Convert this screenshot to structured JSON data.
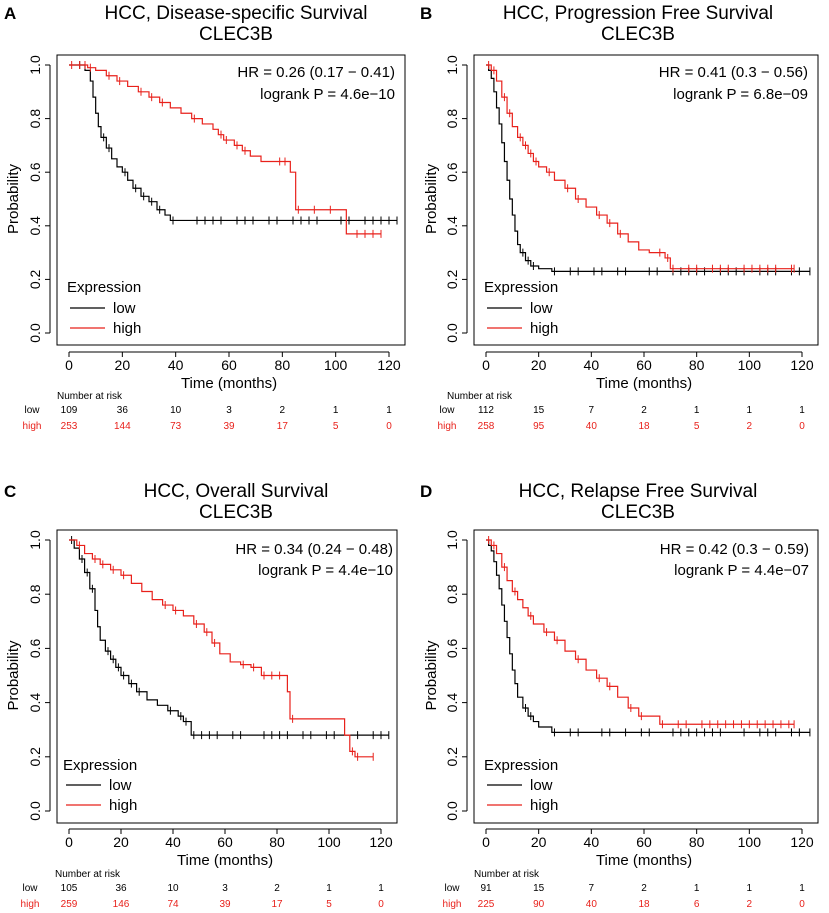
{
  "chart_data": [
    {
      "panel": "A",
      "type": "line",
      "title": "HCC, Disease-specific Survival",
      "subtitle": "CLEC3B",
      "xlabel": "Time (months)",
      "ylabel": "Probability",
      "xlim": [
        0,
        120
      ],
      "ylim": [
        0,
        1
      ],
      "xticks": [
        0,
        20,
        40,
        60,
        80,
        100,
        120
      ],
      "yticks": [
        "0.0",
        "0.2",
        "0.4",
        "0.6",
        "0.8",
        "1.0"
      ],
      "hr_text": "HR = 0.26 (0.17 − 0.41)",
      "logrank_text": "logrank P = 4.6e−10",
      "legend_title": "Expression",
      "series": [
        {
          "name": "low",
          "color": "#000000",
          "points": [
            [
              0,
              1.0
            ],
            [
              3,
              1.0
            ],
            [
              6,
              0.98
            ],
            [
              8,
              0.94
            ],
            [
              9,
              0.88
            ],
            [
              10,
              0.82
            ],
            [
              11,
              0.77
            ],
            [
              12,
              0.73
            ],
            [
              14,
              0.69
            ],
            [
              16,
              0.65
            ],
            [
              18,
              0.62
            ],
            [
              20,
              0.6
            ],
            [
              22,
              0.57
            ],
            [
              24,
              0.54
            ],
            [
              27,
              0.51
            ],
            [
              30,
              0.49
            ],
            [
              33,
              0.46
            ],
            [
              36,
              0.44
            ],
            [
              38,
              0.42
            ],
            [
              123,
              0.42
            ]
          ]
        },
        {
          "name": "high",
          "color": "#e8211b",
          "points": [
            [
              0,
              1.0
            ],
            [
              5,
              1.0
            ],
            [
              7,
              0.99
            ],
            [
              10,
              0.98
            ],
            [
              14,
              0.96
            ],
            [
              18,
              0.94
            ],
            [
              22,
              0.92
            ],
            [
              26,
              0.9
            ],
            [
              30,
              0.88
            ],
            [
              34,
              0.86
            ],
            [
              38,
              0.84
            ],
            [
              42,
              0.82
            ],
            [
              46,
              0.8
            ],
            [
              50,
              0.78
            ],
            [
              54,
              0.76
            ],
            [
              56,
              0.74
            ],
            [
              58,
              0.72
            ],
            [
              62,
              0.7
            ],
            [
              65,
              0.68
            ],
            [
              68,
              0.66
            ],
            [
              72,
              0.64
            ],
            [
              80,
              0.64
            ],
            [
              83,
              0.6
            ],
            [
              85,
              0.46
            ],
            [
              104,
              0.46
            ],
            [
              104,
              0.37
            ],
            [
              117,
              0.37
            ]
          ]
        }
      ],
      "risk_header": "Number at risk",
      "risk_times": [
        0,
        20,
        40,
        60,
        80,
        100,
        120
      ],
      "risk_rows": [
        {
          "name": "low",
          "color": "#000000",
          "values": [
            "109",
            "36",
            "10",
            "3",
            "2",
            "1",
            "1"
          ]
        },
        {
          "name": "high",
          "color": "#e8211b",
          "values": [
            "253",
            "144",
            "73",
            "39",
            "17",
            "5",
            "0"
          ]
        }
      ]
    },
    {
      "panel": "B",
      "type": "line",
      "title": "HCC, Progression Free Survival",
      "subtitle": "CLEC3B",
      "xlabel": "Time (months)",
      "ylabel": "Probability",
      "xlim": [
        0,
        120
      ],
      "ylim": [
        0,
        1
      ],
      "xticks": [
        0,
        20,
        40,
        60,
        80,
        100,
        120
      ],
      "yticks": [
        "0.0",
        "0.2",
        "0.4",
        "0.6",
        "0.8",
        "1.0"
      ],
      "hr_text": "HR = 0.41 (0.3 − 0.56)",
      "logrank_text": "logrank P = 6.8e−09",
      "legend_title": "Expression",
      "series": [
        {
          "name": "low",
          "color": "#000000",
          "points": [
            [
              0,
              1.0
            ],
            [
              1,
              0.98
            ],
            [
              2,
              0.95
            ],
            [
              3,
              0.9
            ],
            [
              4,
              0.84
            ],
            [
              5,
              0.78
            ],
            [
              6,
              0.71
            ],
            [
              7,
              0.64
            ],
            [
              8,
              0.57
            ],
            [
              9,
              0.5
            ],
            [
              10,
              0.44
            ],
            [
              11,
              0.38
            ],
            [
              12,
              0.33
            ],
            [
              13,
              0.3
            ],
            [
              15,
              0.27
            ],
            [
              17,
              0.25
            ],
            [
              20,
              0.24
            ],
            [
              25,
              0.23
            ],
            [
              123,
              0.23
            ]
          ]
        },
        {
          "name": "high",
          "color": "#e8211b",
          "points": [
            [
              0,
              1.0
            ],
            [
              2,
              0.98
            ],
            [
              4,
              0.94
            ],
            [
              6,
              0.88
            ],
            [
              8,
              0.82
            ],
            [
              10,
              0.77
            ],
            [
              12,
              0.73
            ],
            [
              14,
              0.7
            ],
            [
              16,
              0.67
            ],
            [
              18,
              0.64
            ],
            [
              20,
              0.62
            ],
            [
              23,
              0.6
            ],
            [
              26,
              0.57
            ],
            [
              30,
              0.54
            ],
            [
              34,
              0.5
            ],
            [
              38,
              0.47
            ],
            [
              42,
              0.44
            ],
            [
              46,
              0.41
            ],
            [
              50,
              0.37
            ],
            [
              54,
              0.34
            ],
            [
              58,
              0.31
            ],
            [
              62,
              0.3
            ],
            [
              68,
              0.28
            ],
            [
              70,
              0.24
            ],
            [
              117,
              0.24
            ]
          ]
        }
      ],
      "risk_header": "Number at risk",
      "risk_times": [
        0,
        20,
        40,
        60,
        80,
        100,
        120
      ],
      "risk_rows": [
        {
          "name": "low",
          "color": "#000000",
          "values": [
            "112",
            "15",
            "7",
            "2",
            "1",
            "1",
            "1"
          ]
        },
        {
          "name": "high",
          "color": "#e8211b",
          "values": [
            "258",
            "95",
            "40",
            "18",
            "5",
            "2",
            "0"
          ]
        }
      ]
    },
    {
      "panel": "C",
      "type": "line",
      "title": "HCC, Overall Survival",
      "subtitle": "CLEC3B",
      "xlabel": "Time (months)",
      "ylabel": "Probability",
      "xlim": [
        0,
        120
      ],
      "ylim": [
        0,
        1
      ],
      "xticks": [
        0,
        20,
        40,
        60,
        80,
        100,
        120
      ],
      "yticks": [
        "0.0",
        "0.2",
        "0.4",
        "0.6",
        "0.8",
        "1.0"
      ],
      "hr_text": "HR = 0.34 (0.24 − 0.48)",
      "logrank_text": "logrank P = 4.4e−10",
      "legend_title": "Expression",
      "series": [
        {
          "name": "low",
          "color": "#000000",
          "points": [
            [
              0,
              1.0
            ],
            [
              2,
              0.97
            ],
            [
              4,
              0.93
            ],
            [
              6,
              0.88
            ],
            [
              8,
              0.82
            ],
            [
              10,
              0.74
            ],
            [
              11,
              0.68
            ],
            [
              12,
              0.63
            ],
            [
              14,
              0.59
            ],
            [
              16,
              0.56
            ],
            [
              18,
              0.53
            ],
            [
              20,
              0.5
            ],
            [
              23,
              0.47
            ],
            [
              26,
              0.44
            ],
            [
              30,
              0.41
            ],
            [
              34,
              0.39
            ],
            [
              38,
              0.37
            ],
            [
              42,
              0.35
            ],
            [
              44,
              0.33
            ],
            [
              47,
              0.33
            ],
            [
              47,
              0.28
            ],
            [
              123,
              0.28
            ]
          ]
        },
        {
          "name": "high",
          "color": "#e8211b",
          "points": [
            [
              0,
              1.0
            ],
            [
              3,
              0.98
            ],
            [
              6,
              0.95
            ],
            [
              9,
              0.93
            ],
            [
              12,
              0.91
            ],
            [
              16,
              0.89
            ],
            [
              20,
              0.87
            ],
            [
              24,
              0.84
            ],
            [
              28,
              0.81
            ],
            [
              32,
              0.78
            ],
            [
              36,
              0.76
            ],
            [
              40,
              0.74
            ],
            [
              44,
              0.72
            ],
            [
              48,
              0.69
            ],
            [
              52,
              0.66
            ],
            [
              55,
              0.62
            ],
            [
              58,
              0.58
            ],
            [
              62,
              0.55
            ],
            [
              66,
              0.54
            ],
            [
              70,
              0.53
            ],
            [
              74,
              0.5
            ],
            [
              83,
              0.5
            ],
            [
              84,
              0.44
            ],
            [
              85,
              0.34
            ],
            [
              104,
              0.34
            ],
            [
              106,
              0.28
            ],
            [
              108,
              0.22
            ],
            [
              110,
              0.2
            ],
            [
              117,
              0.2
            ]
          ]
        }
      ],
      "risk_header": "Number at risk",
      "risk_times": [
        0,
        20,
        40,
        60,
        80,
        100,
        120
      ],
      "risk_rows": [
        {
          "name": "low",
          "color": "#000000",
          "values": [
            "105",
            "36",
            "10",
            "3",
            "2",
            "1",
            "1"
          ]
        },
        {
          "name": "high",
          "color": "#e8211b",
          "values": [
            "259",
            "146",
            "74",
            "39",
            "17",
            "5",
            "0"
          ]
        }
      ]
    },
    {
      "panel": "D",
      "type": "line",
      "title": "HCC, Relapse Free Survival",
      "subtitle": "CLEC3B",
      "xlabel": "Time (months)",
      "ylabel": "Probability",
      "xlim": [
        0,
        120
      ],
      "ylim": [
        0,
        1
      ],
      "xticks": [
        0,
        20,
        40,
        60,
        80,
        100,
        120
      ],
      "yticks": [
        "0.0",
        "0.2",
        "0.4",
        "0.6",
        "0.8",
        "1.0"
      ],
      "hr_text": "HR = 0.42 (0.3 − 0.59)",
      "logrank_text": "logrank P = 4.4e−07",
      "legend_title": "Expression",
      "series": [
        {
          "name": "low",
          "color": "#000000",
          "points": [
            [
              0,
              1.0
            ],
            [
              1,
              0.98
            ],
            [
              2,
              0.96
            ],
            [
              3,
              0.92
            ],
            [
              4,
              0.87
            ],
            [
              5,
              0.82
            ],
            [
              6,
              0.76
            ],
            [
              7,
              0.7
            ],
            [
              8,
              0.64
            ],
            [
              9,
              0.58
            ],
            [
              10,
              0.52
            ],
            [
              11,
              0.47
            ],
            [
              12,
              0.42
            ],
            [
              14,
              0.38
            ],
            [
              16,
              0.35
            ],
            [
              18,
              0.33
            ],
            [
              20,
              0.31
            ],
            [
              25,
              0.29
            ],
            [
              123,
              0.29
            ]
          ]
        },
        {
          "name": "high",
          "color": "#e8211b",
          "points": [
            [
              0,
              1.0
            ],
            [
              2,
              0.98
            ],
            [
              4,
              0.95
            ],
            [
              6,
              0.9
            ],
            [
              8,
              0.85
            ],
            [
              10,
              0.81
            ],
            [
              12,
              0.78
            ],
            [
              14,
              0.75
            ],
            [
              16,
              0.72
            ],
            [
              18,
              0.69
            ],
            [
              22,
              0.66
            ],
            [
              26,
              0.63
            ],
            [
              30,
              0.59
            ],
            [
              34,
              0.56
            ],
            [
              38,
              0.52
            ],
            [
              42,
              0.49
            ],
            [
              46,
              0.46
            ],
            [
              50,
              0.42
            ],
            [
              54,
              0.38
            ],
            [
              58,
              0.35
            ],
            [
              62,
              0.35
            ],
            [
              66,
              0.32
            ],
            [
              117,
              0.32
            ]
          ]
        }
      ],
      "risk_header": "Number at risk",
      "risk_times": [
        0,
        20,
        40,
        60,
        80,
        100,
        120
      ],
      "risk_rows": [
        {
          "name": "low",
          "color": "#000000",
          "values": [
            "91",
            "15",
            "7",
            "2",
            "1",
            "1",
            "1"
          ]
        },
        {
          "name": "high",
          "color": "#e8211b",
          "values": [
            "225",
            "90",
            "40",
            "18",
            "6",
            "2",
            "0"
          ]
        }
      ]
    }
  ]
}
